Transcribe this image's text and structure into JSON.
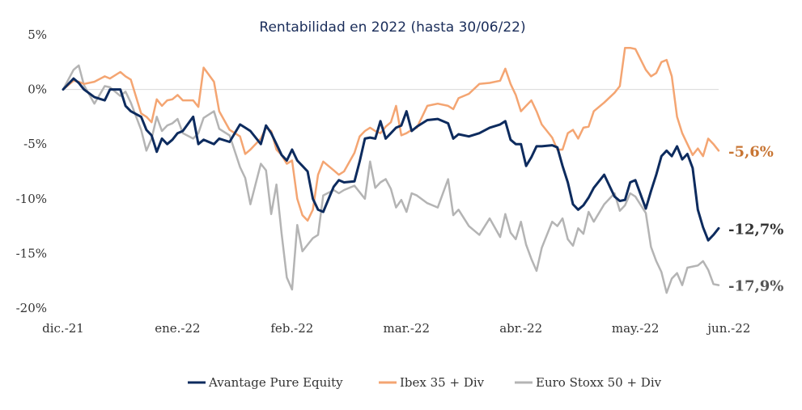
{
  "chart_data": {
    "type": "line",
    "title": "Rentabilidad en 2022 (hasta 30/06/22)",
    "xlabel": "",
    "ylabel": "",
    "ylim": [
      -20,
      5
    ],
    "yticks": [
      5,
      0,
      -5,
      -10,
      -15,
      -20
    ],
    "ytick_labels": [
      "5%",
      "0%",
      "-5%",
      "-10%",
      "-15%",
      "-20%"
    ],
    "xlim": [
      0,
      126
    ],
    "xticks": [
      0,
      22,
      44,
      66,
      88,
      110,
      128
    ],
    "xtick_labels": [
      "dic.-21",
      "ene.-22",
      "feb.-22",
      "mar.-22",
      "abr.-22",
      "may.-22",
      "jun.-22"
    ],
    "grid": false,
    "legend_position": "bottom",
    "series": [
      {
        "name": "Avantage Pure Equity",
        "color": "#0d2b5e",
        "end_label": "-12,7%",
        "end_label_color": "#333333",
        "x": [
          0,
          2,
          3,
          4,
          6,
          8,
          9,
          11,
          12,
          13,
          15,
          16,
          17,
          18,
          19,
          20,
          21,
          22,
          23,
          25,
          26,
          27,
          29,
          30,
          32,
          34,
          35,
          36,
          38,
          39,
          40,
          41,
          42,
          43,
          44,
          45,
          46,
          47,
          48,
          49,
          50,
          52,
          53,
          54,
          56,
          57,
          58,
          59,
          60,
          61,
          62,
          63,
          64,
          65,
          66,
          67,
          68,
          70,
          72,
          74,
          75,
          76,
          78,
          80,
          82,
          84,
          85,
          86,
          87,
          88,
          89,
          90,
          91,
          92,
          94,
          95,
          96,
          97,
          98,
          99,
          100,
          101,
          102,
          104,
          106,
          107,
          108,
          109,
          110,
          112,
          113,
          114,
          115,
          116,
          117,
          118,
          119,
          120,
          121,
          122,
          123,
          124,
          125,
          126
        ],
        "values": [
          0,
          1,
          0.6,
          0,
          -0.7,
          -1,
          0,
          0,
          -1.5,
          -2,
          -2.5,
          -3.7,
          -4.2,
          -5.7,
          -4.5,
          -5,
          -4.6,
          -4,
          -3.8,
          -2.5,
          -5,
          -4.6,
          -5,
          -4.5,
          -4.8,
          -3.2,
          -3.5,
          -3.8,
          -5,
          -3.3,
          -4,
          -5,
          -6,
          -6.5,
          -5.5,
          -6.5,
          -7,
          -7.5,
          -10,
          -11,
          -11.2,
          -8.9,
          -8.3,
          -8.5,
          -8.4,
          -6.6,
          -4.5,
          -4.4,
          -4.5,
          -2.9,
          -4.5,
          -4,
          -3.5,
          -3.3,
          -2,
          -3.8,
          -3.4,
          -2.8,
          -2.7,
          -3.1,
          -4.5,
          -4.1,
          -4.3,
          -4,
          -3.5,
          -3.2,
          -2.9,
          -4.6,
          -5,
          -5,
          -7,
          -6.2,
          -5.2,
          -5.2,
          -5.1,
          -5.3,
          -7,
          -8.5,
          -10.5,
          -11,
          -10.6,
          -9.9,
          -9,
          -7.8,
          -9.8,
          -10.2,
          -10.1,
          -8.5,
          -8.3,
          -10.9,
          -9.3,
          -7.8,
          -6.1,
          -5.6,
          -6.1,
          -5.2,
          -6.4,
          -5.9,
          -7.2,
          -11,
          -12.6,
          -13.8,
          -13.3,
          -12.7
        ]
      },
      {
        "name": "Ibex 35 + Div",
        "color": "#f4a572",
        "end_label": "-5,6%",
        "end_label_color": "#c87533",
        "x": [
          0,
          2,
          3,
          4,
          6,
          8,
          9,
          11,
          12,
          13,
          15,
          16,
          17,
          18,
          19,
          20,
          21,
          22,
          23,
          25,
          26,
          27,
          29,
          30,
          32,
          34,
          35,
          36,
          38,
          39,
          40,
          41,
          42,
          43,
          44,
          45,
          46,
          47,
          48,
          49,
          50,
          52,
          53,
          54,
          56,
          57,
          58,
          59,
          60,
          61,
          62,
          63,
          64,
          65,
          66,
          67,
          68,
          70,
          72,
          74,
          75,
          76,
          78,
          80,
          82,
          84,
          85,
          86,
          87,
          88,
          89,
          90,
          91,
          92,
          94,
          95,
          96,
          97,
          98,
          99,
          100,
          101,
          102,
          104,
          106,
          107,
          108,
          109,
          110,
          112,
          113,
          114,
          115,
          116,
          117,
          118,
          119,
          120,
          121,
          122,
          123,
          124,
          125,
          126
        ],
        "values": [
          0,
          0.8,
          0.7,
          0.5,
          0.7,
          1.2,
          1,
          1.6,
          1.2,
          0.9,
          -2.2,
          -2.5,
          -3,
          -0.9,
          -1.5,
          -1,
          -0.9,
          -0.5,
          -1,
          -1,
          -1.6,
          2,
          0.7,
          -2,
          -3.7,
          -4.3,
          -5.9,
          -5.5,
          -4.5,
          -3.5,
          -3.8,
          -5.5,
          -6,
          -6.8,
          -6.5,
          -10,
          -11.5,
          -12,
          -11,
          -7.8,
          -6.6,
          -7.4,
          -7.8,
          -7.5,
          -5.8,
          -4.3,
          -3.8,
          -3.5,
          -3.8,
          -4,
          -3.4,
          -3,
          -1.5,
          -4.2,
          -4,
          -3.7,
          -3.5,
          -1.5,
          -1.3,
          -1.5,
          -1.8,
          -0.8,
          -0.4,
          0.5,
          0.6,
          0.8,
          1.9,
          0.5,
          -0.5,
          -2,
          -1.5,
          -1,
          -2,
          -3.2,
          -4.4,
          -5.5,
          -5.5,
          -4,
          -3.7,
          -4.5,
          -3.5,
          -3.4,
          -2,
          -1.2,
          -0.3,
          0.3,
          3.8,
          3.8,
          3.7,
          1.8,
          1.2,
          1.5,
          2.5,
          2.7,
          1.2,
          -2.5,
          -4,
          -5,
          -6,
          -5.4,
          -6.1,
          -4.5,
          -5,
          -5.6
        ]
      },
      {
        "name": "Euro Stoxx 50 + Div",
        "color": "#b4b4b4",
        "end_label": "-17,9%",
        "end_label_color": "#555555",
        "x": [
          0,
          2,
          3,
          4,
          6,
          8,
          9,
          11,
          12,
          13,
          15,
          16,
          17,
          18,
          19,
          20,
          21,
          22,
          23,
          25,
          26,
          27,
          29,
          30,
          32,
          34,
          35,
          36,
          38,
          39,
          40,
          41,
          42,
          43,
          44,
          45,
          46,
          47,
          48,
          49,
          50,
          52,
          53,
          54,
          56,
          57,
          58,
          59,
          60,
          61,
          62,
          63,
          64,
          65,
          66,
          67,
          68,
          70,
          72,
          74,
          75,
          76,
          78,
          80,
          82,
          84,
          85,
          86,
          87,
          88,
          89,
          90,
          91,
          92,
          94,
          95,
          96,
          97,
          98,
          99,
          100,
          101,
          102,
          104,
          106,
          107,
          108,
          109,
          110,
          112,
          113,
          114,
          115,
          116,
          117,
          118,
          119,
          120,
          121,
          122,
          123,
          124,
          125,
          126
        ],
        "values": [
          0,
          1.8,
          2.2,
          0.4,
          -1.3,
          0.3,
          0.2,
          -0.6,
          -0.2,
          -1.2,
          -3.7,
          -5.6,
          -4.5,
          -2.5,
          -3.8,
          -3.3,
          -3.1,
          -2.7,
          -4,
          -4.5,
          -4,
          -2.6,
          -2,
          -3.6,
          -4.2,
          -7.1,
          -8.1,
          -10.5,
          -6.8,
          -7.4,
          -11.4,
          -8.7,
          -13.2,
          -17.2,
          -18.3,
          -12.4,
          -14.8,
          -14.2,
          -13.6,
          -13.3,
          -9.7,
          -9.2,
          -9.5,
          -9.2,
          -8.8,
          -9.4,
          -10,
          -6.6,
          -9,
          -8.5,
          -8.2,
          -9.1,
          -10.8,
          -10.1,
          -11.2,
          -9.5,
          -9.7,
          -10.4,
          -10.8,
          -8.2,
          -11.5,
          -11,
          -12.5,
          -13.3,
          -11.8,
          -13.5,
          -11.4,
          -13.1,
          -13.7,
          -12.1,
          -14.2,
          -15.5,
          -16.6,
          -14.5,
          -12.1,
          -12.5,
          -11.8,
          -13.7,
          -14.3,
          -12.7,
          -13.2,
          -11.2,
          -12.1,
          -10.5,
          -9.5,
          -11.1,
          -10.6,
          -9.5,
          -9.8,
          -11.3,
          -14.4,
          -15.7,
          -16.7,
          -18.6,
          -17.3,
          -16.8,
          -17.9,
          -16.3,
          -16.2,
          -16.1,
          -15.7,
          -16.5,
          -17.8,
          -17.9
        ]
      }
    ]
  }
}
